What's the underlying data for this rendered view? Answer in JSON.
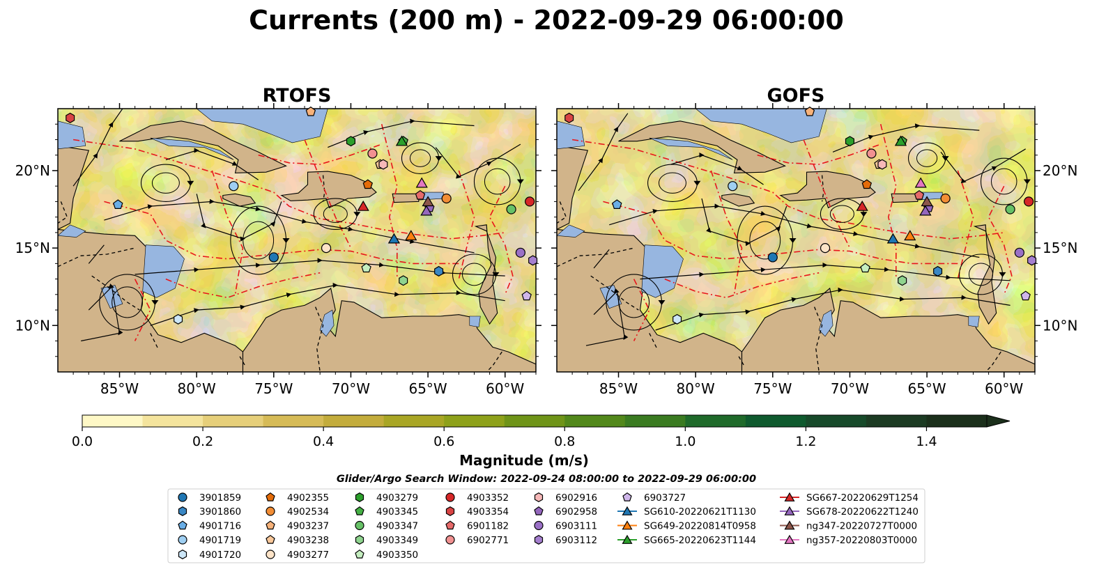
{
  "figure": {
    "title": "Currents (200 m) - 2022-09-29 06:00:00",
    "search_window": "Glider/Argo Search Window: 2022-09-24 08:00:00 to 2022-09-29 06:00:00"
  },
  "chart_data": {
    "type": "heatmap",
    "variable": "Magnitude (m/s)",
    "panels": [
      {
        "title": "RTOFS",
        "model": "rtofs"
      },
      {
        "title": "GOFS",
        "model": "gofs"
      }
    ],
    "x_range": [
      -89,
      -58
    ],
    "y_range": [
      7,
      24
    ],
    "x_ticks": [
      -85,
      -80,
      -75,
      -70,
      -65,
      -60
    ],
    "x_tick_labels": [
      "85°W",
      "80°W",
      "75°W",
      "70°W",
      "65°W",
      "60°W"
    ],
    "y_ticks": [
      10,
      15,
      20
    ],
    "y_tick_labels": [
      "10°N",
      "15°N",
      "20°N"
    ],
    "colorbar": {
      "label": "Magnitude (m/s)",
      "range": [
        0,
        1.5
      ],
      "ticks": [
        0.0,
        0.2,
        0.4,
        0.6,
        0.8,
        1.0,
        1.2,
        1.4
      ],
      "tick_labels": [
        "0.0",
        "0.2",
        "0.4",
        "0.6",
        "0.8",
        "1.0",
        "1.2",
        "1.4"
      ],
      "colors": [
        "#fef8c6",
        "#f4e49d",
        "#e6cf7a",
        "#d6bb57",
        "#c3ac3c",
        "#a9a625",
        "#8ea11a",
        "#6f9418",
        "#52881b",
        "#3a7b21",
        "#1f6a2a",
        "#0f5a2e",
        "#174a2a",
        "#1c3b23",
        "#1b2f1b"
      ]
    },
    "land_color": "#d1b48a",
    "shallow_water_color": "#97b6e0",
    "floats": [
      {
        "id": "3901859",
        "marker": "circle",
        "color": "#1f77b4",
        "lon": -75.0,
        "lat": 14.4
      },
      {
        "id": "3901860",
        "marker": "hexagon",
        "color": "#3a87c4",
        "lon": -64.3,
        "lat": 13.5
      },
      {
        "id": "4901716",
        "marker": "pentagon",
        "color": "#6aaee6",
        "lon": -85.1,
        "lat": 17.8
      },
      {
        "id": "4901719",
        "marker": "circle",
        "color": "#9fcff2",
        "lon": -77.6,
        "lat": 19.0
      },
      {
        "id": "4901720",
        "marker": "hexagon",
        "color": "#cce6f7",
        "lon": -81.2,
        "lat": 10.4
      },
      {
        "id": "4902355",
        "marker": "pentagon",
        "color": "#e46c0a",
        "lon": -68.9,
        "lat": 19.1
      },
      {
        "id": "4902534",
        "marker": "circle",
        "color": "#f28d35",
        "lon": -63.8,
        "lat": 18.2
      },
      {
        "id": "4903237",
        "marker": "pentagon",
        "color": "#f7b27a",
        "lon": -72.6,
        "lat": 23.8
      },
      {
        "id": "4903238",
        "marker": "pentagon",
        "color": "#f9c89a",
        "lon": -68.1,
        "lat": 20.4
      },
      {
        "id": "4903277",
        "marker": "circle",
        "color": "#fde4c8",
        "lon": -71.6,
        "lat": 15.0
      },
      {
        "id": "4903279",
        "marker": "hexagon",
        "color": "#2ca02c",
        "lon": -70.0,
        "lat": 21.9
      },
      {
        "id": "4903345",
        "marker": "pentagon",
        "color": "#45b045",
        "lon": -66.6,
        "lat": 21.9
      },
      {
        "id": "4903347",
        "marker": "circle",
        "color": "#67c167",
        "lon": -59.6,
        "lat": 17.5
      },
      {
        "id": "4903349",
        "marker": "hexagon",
        "color": "#8fd48f",
        "lon": -66.6,
        "lat": 12.9
      },
      {
        "id": "4903350",
        "marker": "pentagon",
        "color": "#c5eec0",
        "lon": -69.0,
        "lat": 13.7
      },
      {
        "id": "4903352",
        "marker": "circle",
        "color": "#d62728",
        "lon": -58.4,
        "lat": 18.0
      },
      {
        "id": "4903354",
        "marker": "hexagon",
        "color": "#d94444",
        "lon": -88.2,
        "lat": 23.4
      },
      {
        "id": "6901182",
        "marker": "pentagon",
        "color": "#e66a6a",
        "lon": -65.5,
        "lat": 18.4
      },
      {
        "id": "6902771",
        "marker": "circle",
        "color": "#f19191",
        "lon": -68.6,
        "lat": 21.1
      },
      {
        "id": "6902916",
        "marker": "hexagon",
        "color": "#f6b8b8",
        "lon": -67.9,
        "lat": 20.4
      },
      {
        "id": "6902958",
        "marker": "pentagon",
        "color": "#9467bd",
        "lon": -64.9,
        "lat": 17.6
      },
      {
        "id": "6903111",
        "marker": "circle",
        "color": "#9a70c6",
        "lon": -59.0,
        "lat": 14.7
      },
      {
        "id": "6903112",
        "marker": "hexagon",
        "color": "#a57fcf",
        "lon": -58.2,
        "lat": 14.2
      },
      {
        "id": "6903727",
        "marker": "pentagon",
        "color": "#cfb6ea",
        "lon": -58.6,
        "lat": 11.9
      }
    ],
    "gliders": [
      {
        "id": "SG610-20220621T1130",
        "color": "#1f77b4",
        "lon": -67.2,
        "lat": 15.6
      },
      {
        "id": "SG649-20220814T0958",
        "color": "#ff7f0e",
        "lon": -66.1,
        "lat": 15.8
      },
      {
        "id": "SG665-20220623T1144",
        "color": "#2ca02c",
        "lon": -66.7,
        "lat": 21.9
      },
      {
        "id": "SG667-20220629T1254",
        "color": "#d62728",
        "lon": -69.2,
        "lat": 17.7
      },
      {
        "id": "SG678-20220622T1240",
        "color": "#9467bd",
        "lon": -65.1,
        "lat": 17.4
      },
      {
        "id": "ng347-20220727T0000",
        "color": "#8c564b",
        "lon": -65.0,
        "lat": 18.0
      },
      {
        "id": "ng357-20220803T0000",
        "color": "#e377c2",
        "lon": -65.4,
        "lat": 19.2
      }
    ]
  }
}
